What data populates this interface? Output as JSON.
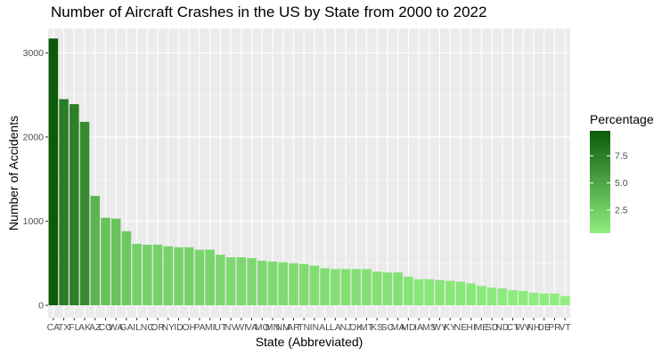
{
  "chart_data": {
    "type": "bar",
    "title": "Number of Aircraft Crashes in the US by State from 2000 to 2022",
    "xlabel": "State (Abbreviated)",
    "ylabel": "Number of Accidents",
    "ylim": [
      0,
      3300
    ],
    "yticks": [
      0,
      1000,
      2000,
      3000
    ],
    "grid": true,
    "categories": [
      "CA",
      "TX",
      "FL",
      "AK",
      "AZ",
      "CO",
      "WA",
      "GA",
      "IL",
      "NC",
      "OR",
      "NY",
      "ID",
      "OH",
      "PA",
      "MI",
      "UT",
      "NV",
      "WI",
      "VA",
      "MO",
      "MN",
      "NM",
      "AR",
      "TN",
      "IN",
      "AL",
      "LA",
      "NJ",
      "OK",
      "MT",
      "KS",
      "SC",
      "MA",
      "MD",
      "IA",
      "MS",
      "WY",
      "KY",
      "NE",
      "HI",
      "ME",
      "SD",
      "ND",
      "CT",
      "WV",
      "NH",
      "DE",
      "PR",
      "VT"
    ],
    "values": [
      3170,
      2450,
      2390,
      2180,
      1300,
      1040,
      1030,
      880,
      730,
      720,
      720,
      700,
      690,
      690,
      660,
      660,
      600,
      570,
      570,
      560,
      530,
      520,
      510,
      500,
      490,
      470,
      440,
      430,
      430,
      430,
      430,
      400,
      390,
      390,
      340,
      310,
      310,
      300,
      290,
      280,
      260,
      230,
      210,
      200,
      180,
      170,
      150,
      140,
      140,
      110
    ],
    "legend": {
      "title": "Percentage",
      "ticks": [
        2.5,
        5.0,
        7.5
      ],
      "tick_labels": [
        "2.5",
        "5.0",
        "7.5"
      ],
      "range": [
        0.37,
        9.8
      ],
      "low_color": "#90EE80",
      "high_color": "#0C5A0A",
      "placement": "right"
    },
    "colors": {
      "panel": "#EBEBEB",
      "grid": "#FFFFFF"
    }
  }
}
